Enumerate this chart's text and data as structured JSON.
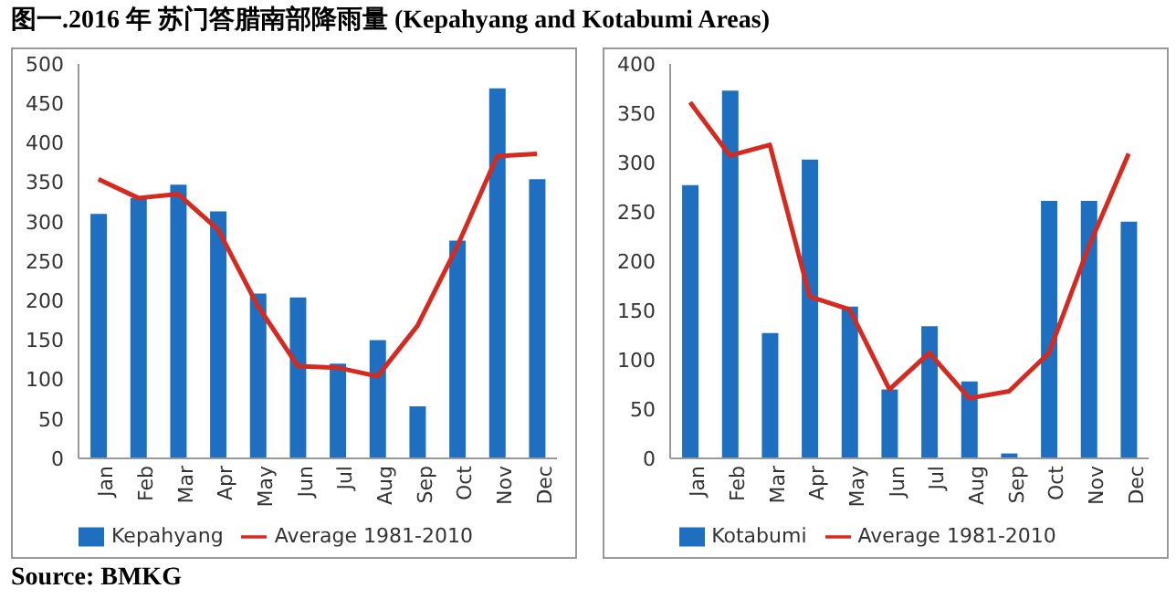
{
  "chart_data": [
    {
      "type": "bar",
      "title": "图一.2016 年 苏门答腊南部降雨量 (Kepahyang and Kotabumi Areas)",
      "annotations": [
        "Source: BMKG"
      ],
      "categories": [
        "Jan",
        "Feb",
        "Mar",
        "Apr",
        "May",
        "Jun",
        "Jul",
        "Aug",
        "Sep",
        "Oct",
        "Nov",
        "Dec"
      ],
      "series": [
        {
          "name": "Kepahyang",
          "color": "#1f6fc0",
          "values": [
            310,
            330,
            347,
            313,
            209,
            204,
            120,
            150,
            66,
            276,
            469,
            354
          ]
        },
        {
          "name": "Average 1981-2010",
          "type": "line",
          "color": "#d42a20",
          "values": [
            354,
            330,
            335,
            290,
            193,
            117,
            115,
            104,
            168,
            269,
            383,
            386
          ]
        }
      ],
      "ylim": [
        0,
        500
      ],
      "yticks": [
        0,
        50,
        100,
        150,
        200,
        250,
        300,
        350,
        400,
        450,
        500
      ],
      "legend": "bottom"
    },
    {
      "type": "bar",
      "categories": [
        "Jan",
        "Feb",
        "Mar",
        "Apr",
        "May",
        "Jun",
        "Jul",
        "Aug",
        "Sep",
        "Oct",
        "Nov",
        "Dec"
      ],
      "series": [
        {
          "name": "Kotabumi",
          "color": "#1f6fc0",
          "values": [
            277,
            373,
            127,
            303,
            154,
            70,
            134,
            78,
            5,
            261,
            261,
            240
          ]
        },
        {
          "name": "Average 1981-2010",
          "type": "line",
          "color": "#d42a20",
          "values": [
            361,
            307,
            318,
            164,
            151,
            70,
            107,
            61,
            68,
            107,
            215,
            309
          ]
        }
      ],
      "ylim": [
        0,
        400
      ],
      "yticks": [
        0,
        50,
        100,
        150,
        200,
        250,
        300,
        350,
        400
      ],
      "legend": "bottom"
    }
  ]
}
